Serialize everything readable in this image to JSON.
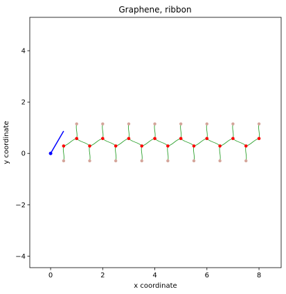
{
  "chart_data": {
    "type": "scatter",
    "title": "Graphene, ribbon",
    "xlabel": "x coordinate",
    "ylabel": "y coordinate",
    "xlim": [
      -0.8,
      8.85
    ],
    "ylim": [
      -4.45,
      5.3
    ],
    "xticks": [
      0,
      2,
      4,
      6,
      8
    ],
    "yticks": [
      -4,
      -2,
      0,
      2,
      4
    ],
    "grid": false,
    "legend": "none",
    "colors": {
      "axes": "#000000",
      "bonds": "#2ca02c",
      "atoms": "#ff0000",
      "edge_atoms": "#d4a59a",
      "origin": "#0000ff"
    },
    "atoms": {
      "x": [
        0.5,
        1.0,
        1.5,
        2.0,
        2.5,
        3.0,
        3.5,
        4.0,
        4.5,
        5.0,
        5.5,
        6.0,
        6.5,
        7.0,
        7.5,
        8.0
      ],
      "y": [
        0.29,
        0.58,
        0.29,
        0.58,
        0.29,
        0.58,
        0.29,
        0.58,
        0.29,
        0.58,
        0.29,
        0.58,
        0.29,
        0.58,
        0.29,
        0.58
      ]
    },
    "edge_atoms": {
      "x": [
        0.5,
        1.0,
        1.5,
        2.0,
        2.5,
        3.0,
        3.5,
        4.0,
        4.5,
        5.0,
        5.5,
        6.0,
        6.5,
        7.0,
        7.5,
        8.0
      ],
      "y": [
        -0.29,
        1.15,
        -0.29,
        1.15,
        -0.29,
        1.15,
        -0.29,
        1.15,
        -0.29,
        1.15,
        -0.29,
        1.15,
        -0.29,
        1.15,
        -0.29,
        1.15
      ]
    },
    "origin_point": {
      "x": 0,
      "y": 0
    },
    "origin_vector": {
      "x": [
        0,
        0.5
      ],
      "y": [
        0,
        0.87
      ]
    }
  }
}
